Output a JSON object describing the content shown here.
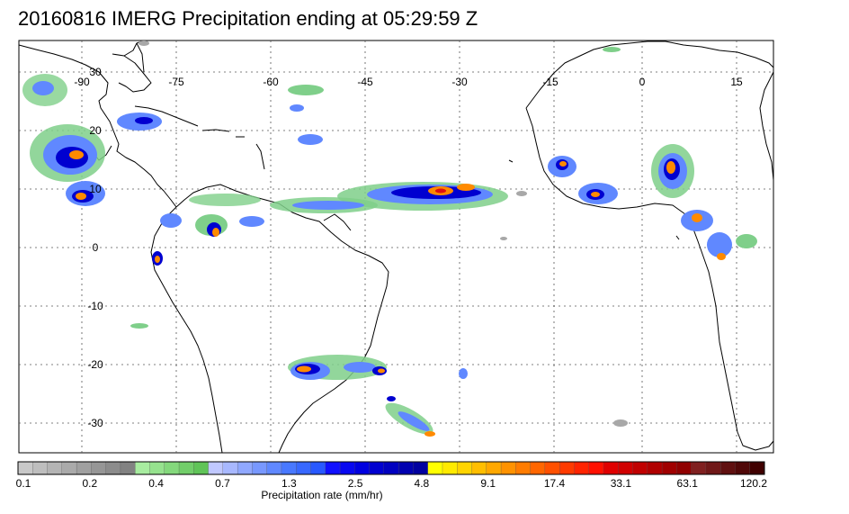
{
  "title": "20160816 IMERG Precipitation ending at 05:29:59 Z",
  "map": {
    "lon_labels": [
      "-90",
      "-75",
      "-60",
      "-45",
      "-30",
      "-15",
      "0",
      "15"
    ],
    "lat_labels": [
      "30",
      "20",
      "10",
      "0",
      "-10",
      "-20",
      "-30"
    ],
    "gridlines": "dotted",
    "coastline_color": "#000000",
    "precip_colors": {
      "light_green": "#7fcf8a",
      "blue": "#3b5bff",
      "dark_blue": "#0000d0",
      "orange": "#ff8a00",
      "red": "#e01010",
      "grey": "#a8a8a8"
    }
  },
  "colorbar": {
    "label": "Precipitation rate (mm/hr)",
    "tick_labels": [
      "0.1",
      "0.2",
      "0.4",
      "0.7",
      "1.3",
      "2.5",
      "4.8",
      "9.1",
      "17.4",
      "33.1",
      "63.1",
      "120.2"
    ],
    "colors": [
      "#c8c8c8",
      "#bebebe",
      "#b4b4b4",
      "#aaaaaa",
      "#a0a0a0",
      "#969696",
      "#8c8c8c",
      "#828282",
      "#a8eca0",
      "#96e28e",
      "#84d87c",
      "#72ce6a",
      "#60c458",
      "#c0c8ff",
      "#a8b8ff",
      "#90a8ff",
      "#7898ff",
      "#6088ff",
      "#4878ff",
      "#3868ff",
      "#2858ff",
      "#1010ff",
      "#0808f0",
      "#0000e0",
      "#0000d0",
      "#0000c0",
      "#0000b0",
      "#0000a0",
      "#ffff00",
      "#ffea00",
      "#ffd400",
      "#ffbe00",
      "#ffa800",
      "#ff9200",
      "#ff7c00",
      "#ff6600",
      "#ff5000",
      "#ff3a00",
      "#ff2400",
      "#ff1000",
      "#e00000",
      "#d00000",
      "#c00000",
      "#b00000",
      "#a00000",
      "#900000",
      "#802020",
      "#701818",
      "#601010",
      "#500808",
      "#400000"
    ]
  }
}
